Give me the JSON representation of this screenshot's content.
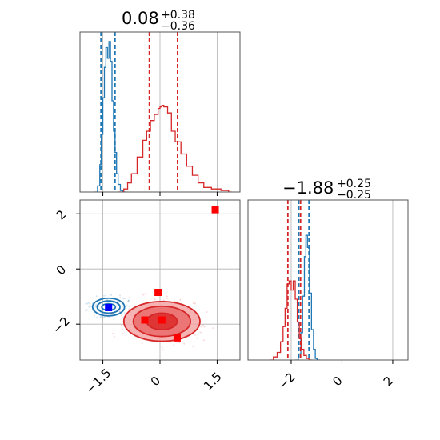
{
  "chart_data": [
    {
      "type": "histogram",
      "panel": "top-left",
      "title": {
        "value": "0.08",
        "upper": "+0.38",
        "lower": "−0.36"
      },
      "xlim": [
        -2.1,
        2.1
      ],
      "xticks": [
        -1.5,
        0.0,
        1.5
      ],
      "grid": true,
      "series": [
        {
          "color": "#1f77b4",
          "bins": [
            {
              "x": -1.72,
              "y": 0.0
            },
            {
              "x": -1.64,
              "y": 0.04
            },
            {
              "x": -1.58,
              "y": 0.18
            },
            {
              "x": -1.54,
              "y": 0.38
            },
            {
              "x": -1.5,
              "y": 0.62
            },
            {
              "x": -1.46,
              "y": 0.82
            },
            {
              "x": -1.42,
              "y": 0.95
            },
            {
              "x": -1.38,
              "y": 0.88
            },
            {
              "x": -1.34,
              "y": 0.99
            },
            {
              "x": -1.3,
              "y": 0.86
            },
            {
              "x": -1.26,
              "y": 0.6
            },
            {
              "x": -1.22,
              "y": 0.4
            },
            {
              "x": -1.18,
              "y": 0.26
            },
            {
              "x": -1.14,
              "y": 0.12
            },
            {
              "x": -1.1,
              "y": 0.05
            },
            {
              "x": -1.04,
              "y": 0.01
            },
            {
              "x": -0.98,
              "y": 0.0
            }
          ],
          "quantiles": [
            -1.55,
            -1.18
          ]
        },
        {
          "color": "#d62728",
          "bins": [
            {
              "x": -1.1,
              "y": 0.0
            },
            {
              "x": -0.95,
              "y": 0.02
            },
            {
              "x": -0.85,
              "y": 0.06
            },
            {
              "x": -0.75,
              "y": 0.12
            },
            {
              "x": -0.6,
              "y": 0.23
            },
            {
              "x": -0.45,
              "y": 0.34
            },
            {
              "x": -0.35,
              "y": 0.4
            },
            {
              "x": -0.25,
              "y": 0.47
            },
            {
              "x": -0.15,
              "y": 0.51
            },
            {
              "x": -0.05,
              "y": 0.55
            },
            {
              "x": 0.0,
              "y": 0.56
            },
            {
              "x": 0.05,
              "y": 0.57
            },
            {
              "x": 0.1,
              "y": 0.56
            },
            {
              "x": 0.2,
              "y": 0.52
            },
            {
              "x": 0.3,
              "y": 0.4
            },
            {
              "x": 0.4,
              "y": 0.33
            },
            {
              "x": 0.55,
              "y": 0.25
            },
            {
              "x": 0.7,
              "y": 0.17
            },
            {
              "x": 0.85,
              "y": 0.11
            },
            {
              "x": 1.0,
              "y": 0.06
            },
            {
              "x": 1.15,
              "y": 0.03
            },
            {
              "x": 1.35,
              "y": 0.02
            },
            {
              "x": 1.6,
              "y": 0.01
            },
            {
              "x": 1.8,
              "y": 0.0
            }
          ],
          "quantiles": [
            -0.28,
            0.46
          ]
        }
      ]
    },
    {
      "type": "histogram",
      "panel": "bottom-right",
      "title": {
        "value": "−1.88",
        "upper": "+0.25",
        "lower": "−0.25"
      },
      "xlim": [
        -3.7,
        2.6
      ],
      "xticks": [
        -2,
        0,
        2
      ],
      "grid": true,
      "series": [
        {
          "color": "#1f77b4",
          "bins": [
            {
              "x": -1.85,
              "y": 0.0
            },
            {
              "x": -1.72,
              "y": 0.04
            },
            {
              "x": -1.62,
              "y": 0.18
            },
            {
              "x": -1.55,
              "y": 0.42
            },
            {
              "x": -1.48,
              "y": 0.68
            },
            {
              "x": -1.42,
              "y": 0.82
            },
            {
              "x": -1.36,
              "y": 0.74
            },
            {
              "x": -1.28,
              "y": 0.44
            },
            {
              "x": -1.2,
              "y": 0.2
            },
            {
              "x": -1.12,
              "y": 0.07
            },
            {
              "x": -1.05,
              "y": 0.01
            },
            {
              "x": -0.98,
              "y": 0.0
            }
          ],
          "quantiles": [
            -1.7,
            -1.3
          ]
        },
        {
          "color": "#d62728",
          "bins": [
            {
              "x": -2.85,
              "y": 0.0
            },
            {
              "x": -2.7,
              "y": 0.02
            },
            {
              "x": -2.55,
              "y": 0.05
            },
            {
              "x": -2.42,
              "y": 0.12
            },
            {
              "x": -2.32,
              "y": 0.22
            },
            {
              "x": -2.24,
              "y": 0.34
            },
            {
              "x": -2.16,
              "y": 0.5
            },
            {
              "x": -2.08,
              "y": 0.52
            },
            {
              "x": -2.0,
              "y": 0.46
            },
            {
              "x": -1.92,
              "y": 0.52
            },
            {
              "x": -1.84,
              "y": 0.4
            },
            {
              "x": -1.76,
              "y": 0.25
            },
            {
              "x": -1.68,
              "y": 0.14
            },
            {
              "x": -1.6,
              "y": 0.07
            },
            {
              "x": -1.5,
              "y": 0.03
            },
            {
              "x": -1.4,
              "y": 0.01
            },
            {
              "x": -1.3,
              "y": 0.0
            }
          ],
          "quantiles": [
            -2.13,
            -1.63
          ]
        }
      ]
    },
    {
      "type": "scatter",
      "panel": "bottom-left",
      "xlim": [
        -2.1,
        2.1
      ],
      "ylim": [
        -3.3,
        2.5
      ],
      "xticks": [
        -1.5,
        0.0,
        1.5
      ],
      "yticks": [
        -2,
        0,
        2
      ],
      "grid": true,
      "contours": [
        {
          "color": "#1f77b4",
          "center": [
            -1.35,
            -1.38
          ],
          "radii": [
            [
              0.18,
              0.12
            ],
            [
              0.3,
              0.22
            ],
            [
              0.42,
              0.32
            ]
          ]
        },
        {
          "color": "#d62728",
          "center": [
            0.05,
            -1.9
          ],
          "radii": [
            [
              0.4,
              0.3
            ],
            [
              0.75,
              0.55
            ],
            [
              1.0,
              0.72
            ]
          ]
        }
      ],
      "markers": [
        {
          "color": "#0000ff",
          "x": -1.35,
          "y": -1.4
        },
        {
          "color": "#ff0000",
          "x": 1.45,
          "y": 2.15
        },
        {
          "color": "#ff0000",
          "x": -0.05,
          "y": -0.85
        },
        {
          "color": "#ff0000",
          "x": -0.4,
          "y": -1.85
        },
        {
          "color": "#ff0000",
          "x": 0.05,
          "y": -1.85
        },
        {
          "color": "#ff0000",
          "x": 0.45,
          "y": -2.5
        }
      ]
    }
  ]
}
